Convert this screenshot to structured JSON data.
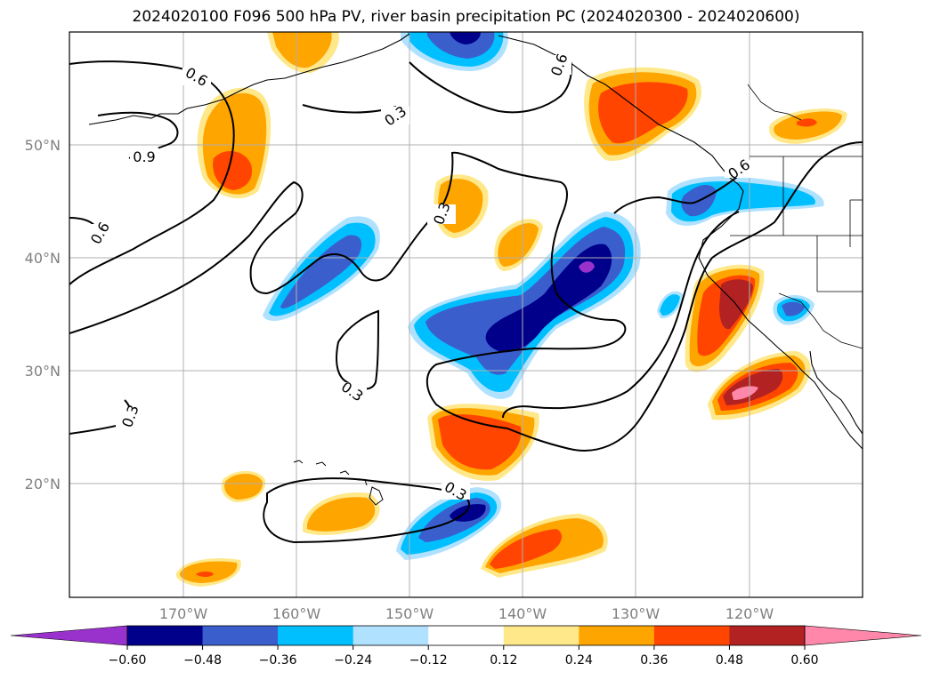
{
  "title": "2024020100 F096 500 hPa PV, river basin precipitation PC (2024020300 - 2024020600)",
  "map": {
    "lon_ticks": [
      "170°W",
      "160°W",
      "150°W",
      "140°W",
      "130°W",
      "120°W"
    ],
    "lat_ticks": [
      "50°N",
      "40°N",
      "30°N",
      "20°N"
    ],
    "contour_labels": [
      "0.6",
      "0.9",
      "0.3",
      "0.6",
      "0.3",
      "0.6",
      "0.6",
      "0.3",
      "0.3",
      "0.3"
    ]
  },
  "colorbar": {
    "labels": [
      "−0.60",
      "−0.48",
      "−0.36",
      "−0.24",
      "−0.12",
      "0.12",
      "0.24",
      "0.36",
      "0.48",
      "0.60"
    ],
    "colors": [
      "#9932cc",
      "#00008b",
      "#3a5fcd",
      "#00bfff",
      "#b0e2ff",
      "#ffffff",
      "#ffe88a",
      "#ffa500",
      "#ff4500",
      "#b22222",
      "#ff88aa"
    ]
  }
}
